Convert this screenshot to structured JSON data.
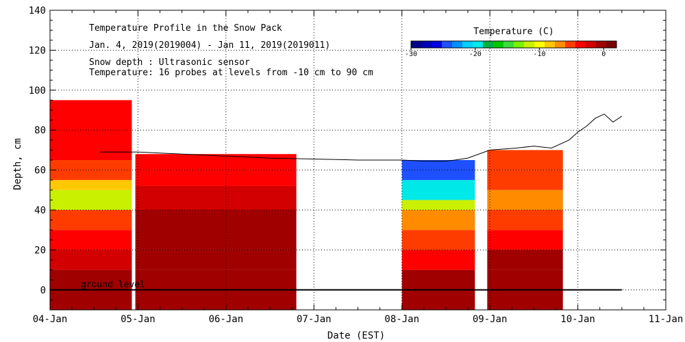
{
  "chart_data": {
    "type": "heatmap",
    "title": "Temperature Profile in the Snow Pack",
    "subtitle_dates": "Jan. 4, 2019(2019004) - Jan 11, 2019(2019011)",
    "note_snow": "Snow depth : Ultrasonic sensor",
    "note_temp": "Temperature: 16 probes at levels from -10 cm to 90 cm",
    "xlabel": "Date (EST)",
    "ylabel": "Depth, cm",
    "x_ticks": [
      "04-Jan",
      "05-Jan",
      "06-Jan",
      "07-Jan",
      "08-Jan",
      "09-Jan",
      "10-Jan",
      "11-Jan"
    ],
    "x_range_days": [
      0,
      7
    ],
    "ylim": [
      -10,
      140
    ],
    "y_ticks": [
      0,
      20,
      40,
      60,
      80,
      100,
      120,
      140
    ],
    "ground_level_label": "ground level",
    "colorbar": {
      "title": "Temperature (C)",
      "ticks": [
        -30,
        -20,
        -10,
        0
      ],
      "range": [
        -30,
        2
      ],
      "colors": [
        "#00008b",
        "#0000b4",
        "#0000e0",
        "#1e50ff",
        "#0090ff",
        "#00d0ff",
        "#00e8e8",
        "#00b040",
        "#00c800",
        "#3cdc3c",
        "#78f000",
        "#c8f000",
        "#ffff00",
        "#ffc800",
        "#ff8c00",
        "#ff3c00",
        "#ff0000",
        "#d20000",
        "#a00000",
        "#780000"
      ]
    },
    "snow_depth_series": [
      [
        0.57,
        69
      ],
      [
        1.0,
        69
      ],
      [
        1.5,
        68
      ],
      [
        2.0,
        67
      ],
      [
        2.5,
        66
      ],
      [
        3.0,
        65.5
      ],
      [
        3.5,
        65
      ],
      [
        4.0,
        65
      ],
      [
        4.25,
        64.5
      ],
      [
        4.5,
        64.5
      ],
      [
        4.6,
        65
      ],
      [
        4.75,
        66
      ],
      [
        5.0,
        70
      ],
      [
        5.3,
        71
      ],
      [
        5.5,
        72
      ],
      [
        5.7,
        71
      ],
      [
        5.9,
        75
      ],
      [
        6.0,
        79
      ],
      [
        6.1,
        82
      ],
      [
        6.2,
        86
      ],
      [
        6.3,
        88
      ],
      [
        6.4,
        84
      ],
      [
        6.5,
        87
      ]
    ],
    "temperature_segments": [
      {
        "start": 0,
        "end": 0.93,
        "top": 95,
        "zones": [
          [
            -10,
            0,
            0
          ],
          [
            0,
            10,
            0
          ],
          [
            10,
            20,
            -2
          ],
          [
            20,
            30,
            -4
          ],
          [
            30,
            40,
            -6
          ],
          [
            40,
            50,
            -11
          ],
          [
            50,
            55,
            -9
          ],
          [
            55,
            65,
            -6
          ],
          [
            65,
            95,
            -4
          ]
        ]
      },
      {
        "start": 0.97,
        "end": 2.8,
        "top": 68,
        "zones": [
          [
            -10,
            0,
            0
          ],
          [
            0,
            10,
            0
          ],
          [
            10,
            20,
            -1
          ],
          [
            20,
            40,
            -1
          ],
          [
            40,
            52,
            -2
          ],
          [
            52,
            60,
            -3
          ],
          [
            60,
            68,
            -4
          ]
        ]
      },
      {
        "start": 4.0,
        "end": 4.83,
        "top": 65,
        "zones": [
          [
            -10,
            0,
            0
          ],
          [
            0,
            10,
            0
          ],
          [
            10,
            20,
            -3
          ],
          [
            20,
            30,
            -5
          ],
          [
            30,
            40,
            -7
          ],
          [
            40,
            45,
            -11
          ],
          [
            45,
            55,
            -20
          ],
          [
            55,
            65,
            -25
          ]
        ]
      },
      {
        "start": 4.97,
        "end": 5.83,
        "top": 70,
        "zones": [
          [
            -10,
            0,
            0
          ],
          [
            0,
            10,
            0
          ],
          [
            10,
            20,
            -1
          ],
          [
            20,
            30,
            -3
          ],
          [
            30,
            40,
            -5
          ],
          [
            40,
            50,
            -7
          ],
          [
            50,
            60,
            -6
          ],
          [
            60,
            70,
            -5
          ]
        ]
      }
    ]
  }
}
